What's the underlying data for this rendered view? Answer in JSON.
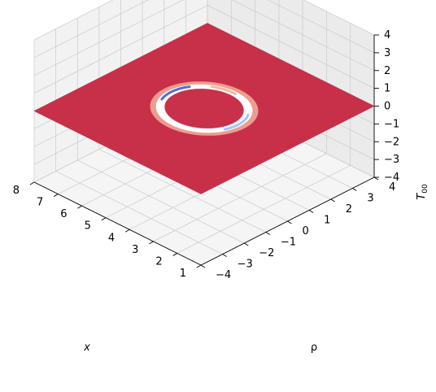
{
  "chart_data": {
    "type": "surface",
    "title": "",
    "xlabel": "x",
    "ylabel": "ρ",
    "zlabel_base": "T",
    "zlabel_sub": "00",
    "xlim": [
      1,
      8
    ],
    "ylim": [
      -4,
      4
    ],
    "zlim": [
      -4,
      4
    ],
    "x_ticks": [
      "1",
      "2",
      "3",
      "4",
      "5",
      "6",
      "7",
      "8"
    ],
    "y_ticks": [
      "−4",
      "−3",
      "−2",
      "−1",
      "0",
      "1",
      "2",
      "3",
      "4"
    ],
    "z_ticks": [
      "−4",
      "−3",
      "−2",
      "−1",
      "0",
      "1",
      "2",
      "3",
      "4"
    ],
    "surface": {
      "baseline_value": 0,
      "baseline_color": "#c9304a",
      "ring_center_x": 4.5,
      "ring_center_rho": 0,
      "ring_radius": 1.5,
      "ring_colors": [
        "#ffffff",
        "#f5b9a0",
        "#4f6fd8",
        "#a9c2f7"
      ]
    },
    "grid": true
  }
}
